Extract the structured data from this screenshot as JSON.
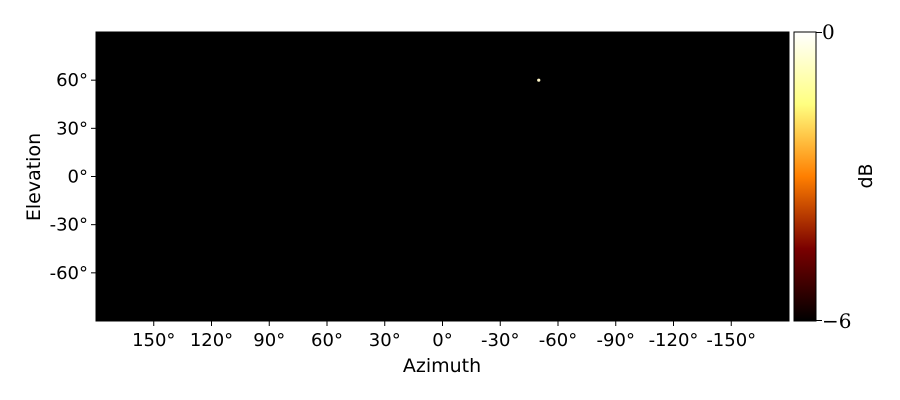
{
  "chart_data": {
    "type": "heatmap",
    "title": "",
    "xlabel": "Azimuth",
    "ylabel": "Elevation",
    "xlim": [
      180,
      -180
    ],
    "ylim": [
      -90,
      90
    ],
    "x_ticks": [
      150,
      120,
      90,
      60,
      30,
      0,
      -30,
      -60,
      -90,
      -120,
      -150
    ],
    "x_tick_labels": [
      "150°",
      "120°",
      "90°",
      "60°",
      "30°",
      "0°",
      "-30°",
      "-60°",
      "-90°",
      "-120°",
      "-150°"
    ],
    "y_ticks": [
      60,
      30,
      0,
      -30,
      -60
    ],
    "y_tick_labels": [
      "60°",
      "30°",
      "0°",
      "-30°",
      "-60°"
    ],
    "background_level_db": -6,
    "peaks": [
      {
        "azimuth": -50,
        "elevation": 60,
        "level_db": 0
      }
    ],
    "colorbar": {
      "label": "dB",
      "min": -6,
      "max": 0,
      "tick_labels": [
        "0",
        "−6"
      ],
      "colormap": "afmhot",
      "stops": [
        "#000000",
        "#7a0000",
        "#ff7f00",
        "#ffff80",
        "#ffffff"
      ]
    }
  }
}
